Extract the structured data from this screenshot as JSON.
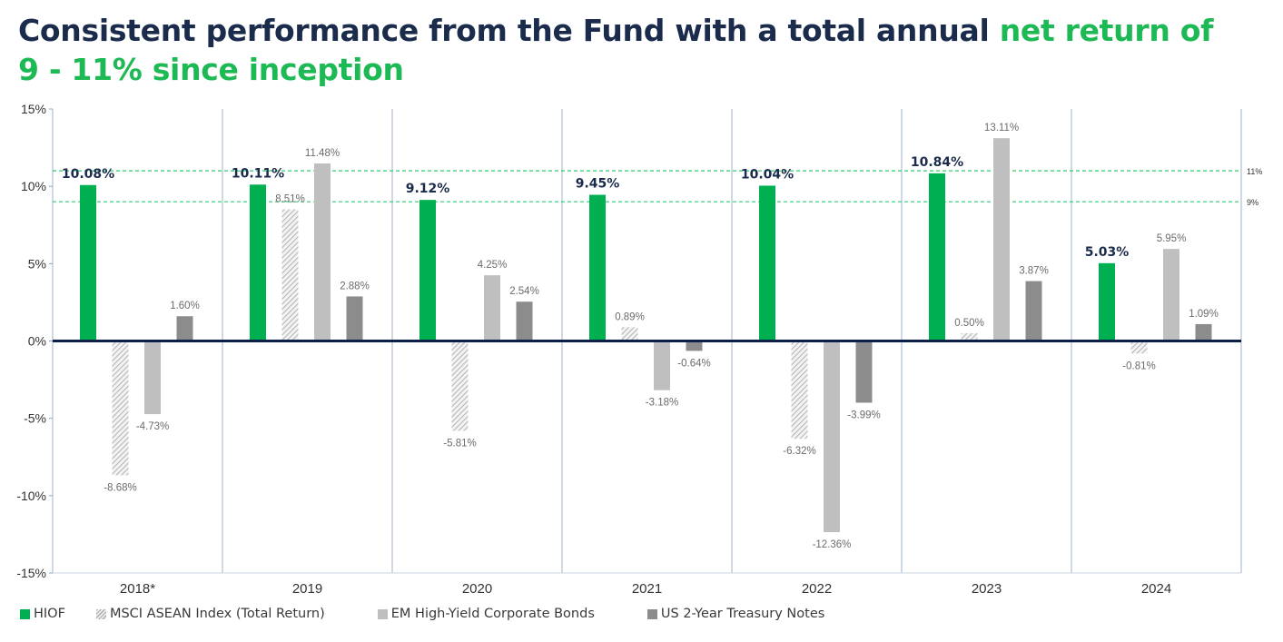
{
  "title": {
    "part1": "Consistent performance from the Fund with a total annual ",
    "part2": "net return of",
    "line2": "9 - 11% since inception"
  },
  "chart_data": {
    "type": "bar",
    "categories": [
      "2018*",
      "2019",
      "2020",
      "2021",
      "2022",
      "2023",
      "2024"
    ],
    "series": [
      {
        "name": "HIOF",
        "values": [
          10.08,
          10.11,
          9.12,
          9.45,
          10.04,
          10.84,
          5.03
        ],
        "labels": [
          "10.08%",
          "10.11%",
          "9.12%",
          "9.45%",
          "10.04%",
          "10.84%",
          "5.03%"
        ],
        "color": "#00b050",
        "pattern": "solid"
      },
      {
        "name": "MSCI ASEAN Index (Total Return)",
        "values": [
          -8.68,
          8.51,
          -5.81,
          0.89,
          -6.32,
          0.5,
          -0.81
        ],
        "labels": [
          "-8.68%",
          "8.51%",
          "-5.81%",
          "0.89%",
          "-6.32%",
          "0.50%",
          "-0.81%"
        ],
        "color": "#c8c8c8",
        "pattern": "hatch"
      },
      {
        "name": "EM High-Yield Corporate Bonds",
        "values": [
          -4.73,
          11.48,
          4.25,
          -3.18,
          -12.36,
          13.11,
          5.95
        ],
        "labels": [
          "-4.73%",
          "11.48%",
          "4.25%",
          "-3.18%",
          "-12.36%",
          "13.11%",
          "5.95%"
        ],
        "color": "#bfbfbf",
        "pattern": "solid"
      },
      {
        "name": "US 2-Year Treasury Notes",
        "values": [
          1.6,
          2.88,
          2.54,
          -0.64,
          -3.99,
          3.87,
          1.09
        ],
        "labels": [
          "1.60%",
          "2.88%",
          "2.54%",
          "-0.64%",
          "-3.99%",
          "3.87%",
          "1.09%"
        ],
        "color": "#8c8c8c",
        "pattern": "solid"
      }
    ],
    "ylim": [
      -15,
      15
    ],
    "yticks": [
      15,
      10,
      5,
      0,
      -5,
      -10,
      -15
    ],
    "ytick_labels": [
      "15%",
      "10%",
      "5%",
      "0%",
      "-5%",
      "-10%",
      "-15%"
    ],
    "reference_lines": [
      {
        "value": 11,
        "label": "11%",
        "color": "#2ecc71"
      },
      {
        "value": 9,
        "label": "9%",
        "color": "#2ecc71"
      }
    ],
    "xlabel": "",
    "ylabel": "",
    "legend_position": "bottom-left"
  },
  "colors": {
    "title_dark": "#1a2b4c",
    "title_accent": "#1db954",
    "zero_line": "#0c1e4a",
    "separator": "#9fb3cc"
  }
}
